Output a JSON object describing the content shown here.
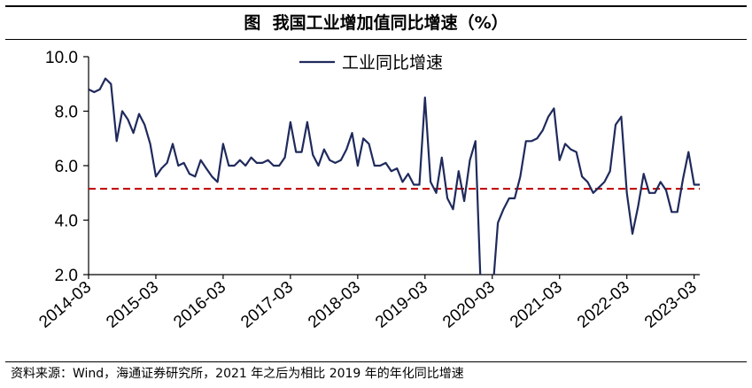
{
  "figure": {
    "title": "图  我国工业增加值同比增速（%）",
    "source": "资料来源：Wind，海通证券研究所，2021 年之后为相比 2019 年的年化同比增速"
  },
  "colors": {
    "series": "#1f2a5c",
    "reference": "#c00000",
    "axis": "#000000"
  },
  "chart_data": {
    "type": "line",
    "title": "图  我国工业增加值同比增速（%）",
    "xlabel": "",
    "ylabel": "",
    "ylim": [
      2.0,
      10.0
    ],
    "yticks": [
      "2.0",
      "4.0",
      "6.0",
      "8.0",
      "10.0"
    ],
    "xticks": [
      "2014-03",
      "2015-03",
      "2016-03",
      "2017-03",
      "2018-03",
      "2019-03",
      "2020-03",
      "2021-03",
      "2022-03",
      "2023-03"
    ],
    "grid": false,
    "legend": "top-center",
    "reference_line": {
      "y": 5.15,
      "style": "dashed"
    },
    "series": [
      {
        "name": "工业同比增速",
        "x": [
          "2014-03",
          "2014-04",
          "2014-05",
          "2014-06",
          "2014-07",
          "2014-08",
          "2014-09",
          "2014-10",
          "2014-11",
          "2014-12",
          "2015-01",
          "2015-02",
          "2015-03",
          "2015-04",
          "2015-05",
          "2015-06",
          "2015-07",
          "2015-08",
          "2015-09",
          "2015-10",
          "2015-11",
          "2015-12",
          "2016-01",
          "2016-02",
          "2016-03",
          "2016-04",
          "2016-05",
          "2016-06",
          "2016-07",
          "2016-08",
          "2016-09",
          "2016-10",
          "2016-11",
          "2016-12",
          "2017-01",
          "2017-02",
          "2017-03",
          "2017-04",
          "2017-05",
          "2017-06",
          "2017-07",
          "2017-08",
          "2017-09",
          "2017-10",
          "2017-11",
          "2017-12",
          "2018-01",
          "2018-02",
          "2018-03",
          "2018-04",
          "2018-05",
          "2018-06",
          "2018-07",
          "2018-08",
          "2018-09",
          "2018-10",
          "2018-11",
          "2018-12",
          "2019-01",
          "2019-02",
          "2019-03",
          "2019-04",
          "2019-05",
          "2019-06",
          "2019-07",
          "2019-08",
          "2019-09",
          "2019-10",
          "2019-11",
          "2019-12",
          "2020-01",
          "2020-02",
          "2020-03",
          "2020-04",
          "2020-05",
          "2020-06",
          "2020-07",
          "2020-08",
          "2020-09",
          "2020-10",
          "2020-11",
          "2020-12",
          "2021-01",
          "2021-02",
          "2021-03",
          "2021-04",
          "2021-05",
          "2021-06",
          "2021-07",
          "2021-08",
          "2021-09",
          "2021-10",
          "2021-11",
          "2021-12",
          "2022-01",
          "2022-02",
          "2022-03",
          "2022-04",
          "2022-05",
          "2022-06",
          "2022-07",
          "2022-08",
          "2022-09",
          "2022-10",
          "2022-11",
          "2022-12",
          "2023-01",
          "2023-02",
          "2023-03",
          "2023-04"
        ],
        "values": [
          8.8,
          8.7,
          8.8,
          9.2,
          9.0,
          6.9,
          8.0,
          7.7,
          7.2,
          7.9,
          7.5,
          6.8,
          5.6,
          5.9,
          6.1,
          6.8,
          6.0,
          6.1,
          5.7,
          5.6,
          6.2,
          5.9,
          5.6,
          5.4,
          6.8,
          6.0,
          6.0,
          6.2,
          6.0,
          6.3,
          6.1,
          6.1,
          6.2,
          6.0,
          6.0,
          6.3,
          7.6,
          6.5,
          6.5,
          7.6,
          6.4,
          6.0,
          6.6,
          6.2,
          6.1,
          6.2,
          6.6,
          7.2,
          6.0,
          7.0,
          6.8,
          6.0,
          6.0,
          6.1,
          5.8,
          5.9,
          5.4,
          5.7,
          5.3,
          5.3,
          8.5,
          5.4,
          5.0,
          6.3,
          4.8,
          4.4,
          5.8,
          4.7,
          6.2,
          6.9,
          1.2,
          1.2,
          1.2,
          3.9,
          4.4,
          4.8,
          4.8,
          5.6,
          6.9,
          6.9,
          7.0,
          7.3,
          7.8,
          8.1,
          6.2,
          6.8,
          6.6,
          6.5,
          5.6,
          5.4,
          5.0,
          5.2,
          5.4,
          5.8,
          7.5,
          7.8,
          5.0,
          3.5,
          4.5,
          5.7,
          5.0,
          5.0,
          5.4,
          5.1,
          4.3,
          4.3,
          5.5,
          6.5,
          5.3,
          5.3
        ]
      }
    ]
  }
}
